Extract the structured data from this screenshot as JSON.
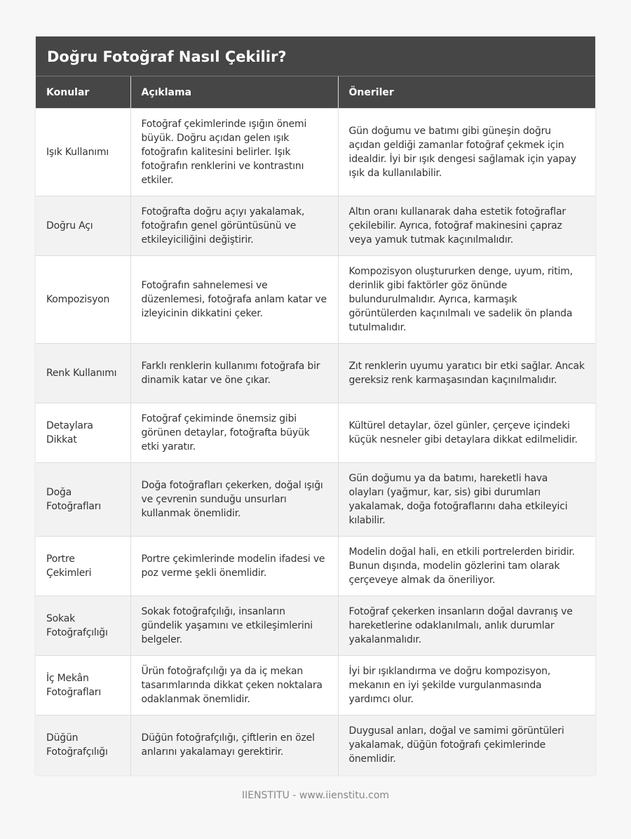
{
  "title": "Doğru Fotoğraf Nasıl Çekilir?",
  "headers": [
    "Konular",
    "Açıklama",
    "Öneriler"
  ],
  "rows": [
    [
      "Işık Kullanımı",
      "Fotoğraf çekimlerinde ışığın önemi büyük. Doğru açıdan gelen ışık fotoğrafın kalitesini belirler. Işık fotoğrafın renklerini ve kontrastını etkiler.",
      "Gün doğumu ve batımı gibi güneşin doğru açıdan geldiği zamanlar fotoğraf çekmek için idealdir. İyi bir ışık dengesi sağlamak için yapay ışık da kullanılabilir."
    ],
    [
      "Doğru Açı",
      "Fotoğrafta doğru açıyı yakalamak, fotoğrafın genel görüntüsünü ve etkileyiciliğini değiştirir.",
      "Altın oranı kullanarak daha estetik fotoğraflar çekilebilir. Ayrıca, fotoğraf makinesini çapraz veya yamuk tutmak kaçınılmalıdır."
    ],
    [
      "Kompozisyon",
      "Fotoğrafın sahnelemesi ve düzenlemesi, fotoğrafa anlam katar ve izleyicinin dikkatini çeker.",
      "Kompozisyon oluştururken denge, uyum, ritim, derinlik gibi faktörler göz önünde bulundurulmalıdır. Ayrıca, karmaşık görüntülerden kaçınılmalı ve sadelik ön planda tutulmalıdır."
    ],
    [
      "Renk Kullanımı",
      "Farklı renklerin kullanımı fotoğrafa bir dinamik katar ve öne çıkar.",
      "Zıt renklerin uyumu yaratıcı bir etki sağlar. Ancak gereksiz renk karmaşasından kaçınılmalıdır."
    ],
    [
      "Detaylara Dikkat",
      "Fotoğraf çekiminde önemsiz gibi görünen detaylar, fotoğrafta büyük etki yaratır.",
      "Kültürel detaylar, özel günler, çerçeve içindeki küçük nesneler gibi detaylara dikkat edilmelidir."
    ],
    [
      "Doğa Fotoğrafları",
      "Doğa fotoğrafları çekerken, doğal ışığı ve çevrenin sunduğu unsurları kullanmak önemlidir.",
      "Gün doğumu ya da batımı, hareketli hava olayları (yağmur, kar, sis) gibi durumları yakalamak, doğa fotoğraflarını daha etkileyici kılabilir."
    ],
    [
      "Portre Çekimleri",
      "Portre çekimlerinde modelin ifadesi ve poz verme şekli önemlidir.",
      "Modelin doğal hali, en etkili portrelerden biridir. Bunun dışında, modelin gözlerini tam olarak çerçeveye almak da öneriliyor."
    ],
    [
      "Sokak Fotoğrafçılığı",
      "Sokak fotoğrafçılığı, insanların gündelik yaşamını ve etkileşimlerini belgeler.",
      "Fotoğraf çekerken insanların doğal davranış ve hareketlerine odaklanılmalı, anlık durumlar yakalanmalıdır."
    ],
    [
      "İç Mekân Fotoğrafları",
      "Ürün fotoğrafçılığı ya da iç mekan tasarımlarında dikkat çeken noktalara odaklanmak önemlidir.",
      "İyi bir ışıklandırma ve doğru kompozisyon, mekanın en iyi şekilde vurgulanmasında yardımcı olur."
    ],
    [
      "Düğün Fotoğrafçılığı",
      "Düğün fotoğrafçılığı, çiftlerin en özel anlarını yakalamayı gerektirir.",
      "Duygusal anları, doğal ve samimi görüntüleri yakalamak, düğün fotoğrafı çekimlerinde önemlidir."
    ]
  ],
  "footer": "IIENSTITU - www.iienstitu.com"
}
